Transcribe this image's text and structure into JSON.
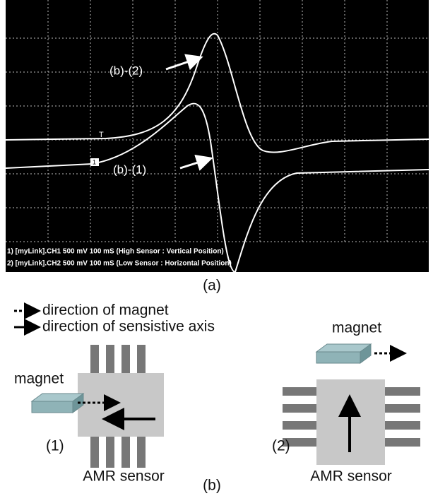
{
  "panel_a": {
    "trace_labels": [
      "(b)-(2)",
      "(b)-(1)"
    ],
    "markers": [
      "T",
      "1"
    ],
    "status_lines": [
      "1) [myLink].CH1  500 mV   100 mS  (High Sensor : Vertical Position)",
      "2) [myLink].CH2  500 mV   100 mS  (Low Sensor : Horizontal Position)"
    ],
    "caption": "(a)"
  },
  "panel_b": {
    "legend": [
      "direction of magnet",
      "direction of sensistive axis"
    ],
    "setups": [
      {
        "number": "(1)",
        "magnet": "magnet",
        "sensor": "AMR sensor"
      },
      {
        "number": "(2)",
        "magnet": "magnet",
        "sensor": "AMR sensor"
      }
    ],
    "caption": "(b)"
  }
}
